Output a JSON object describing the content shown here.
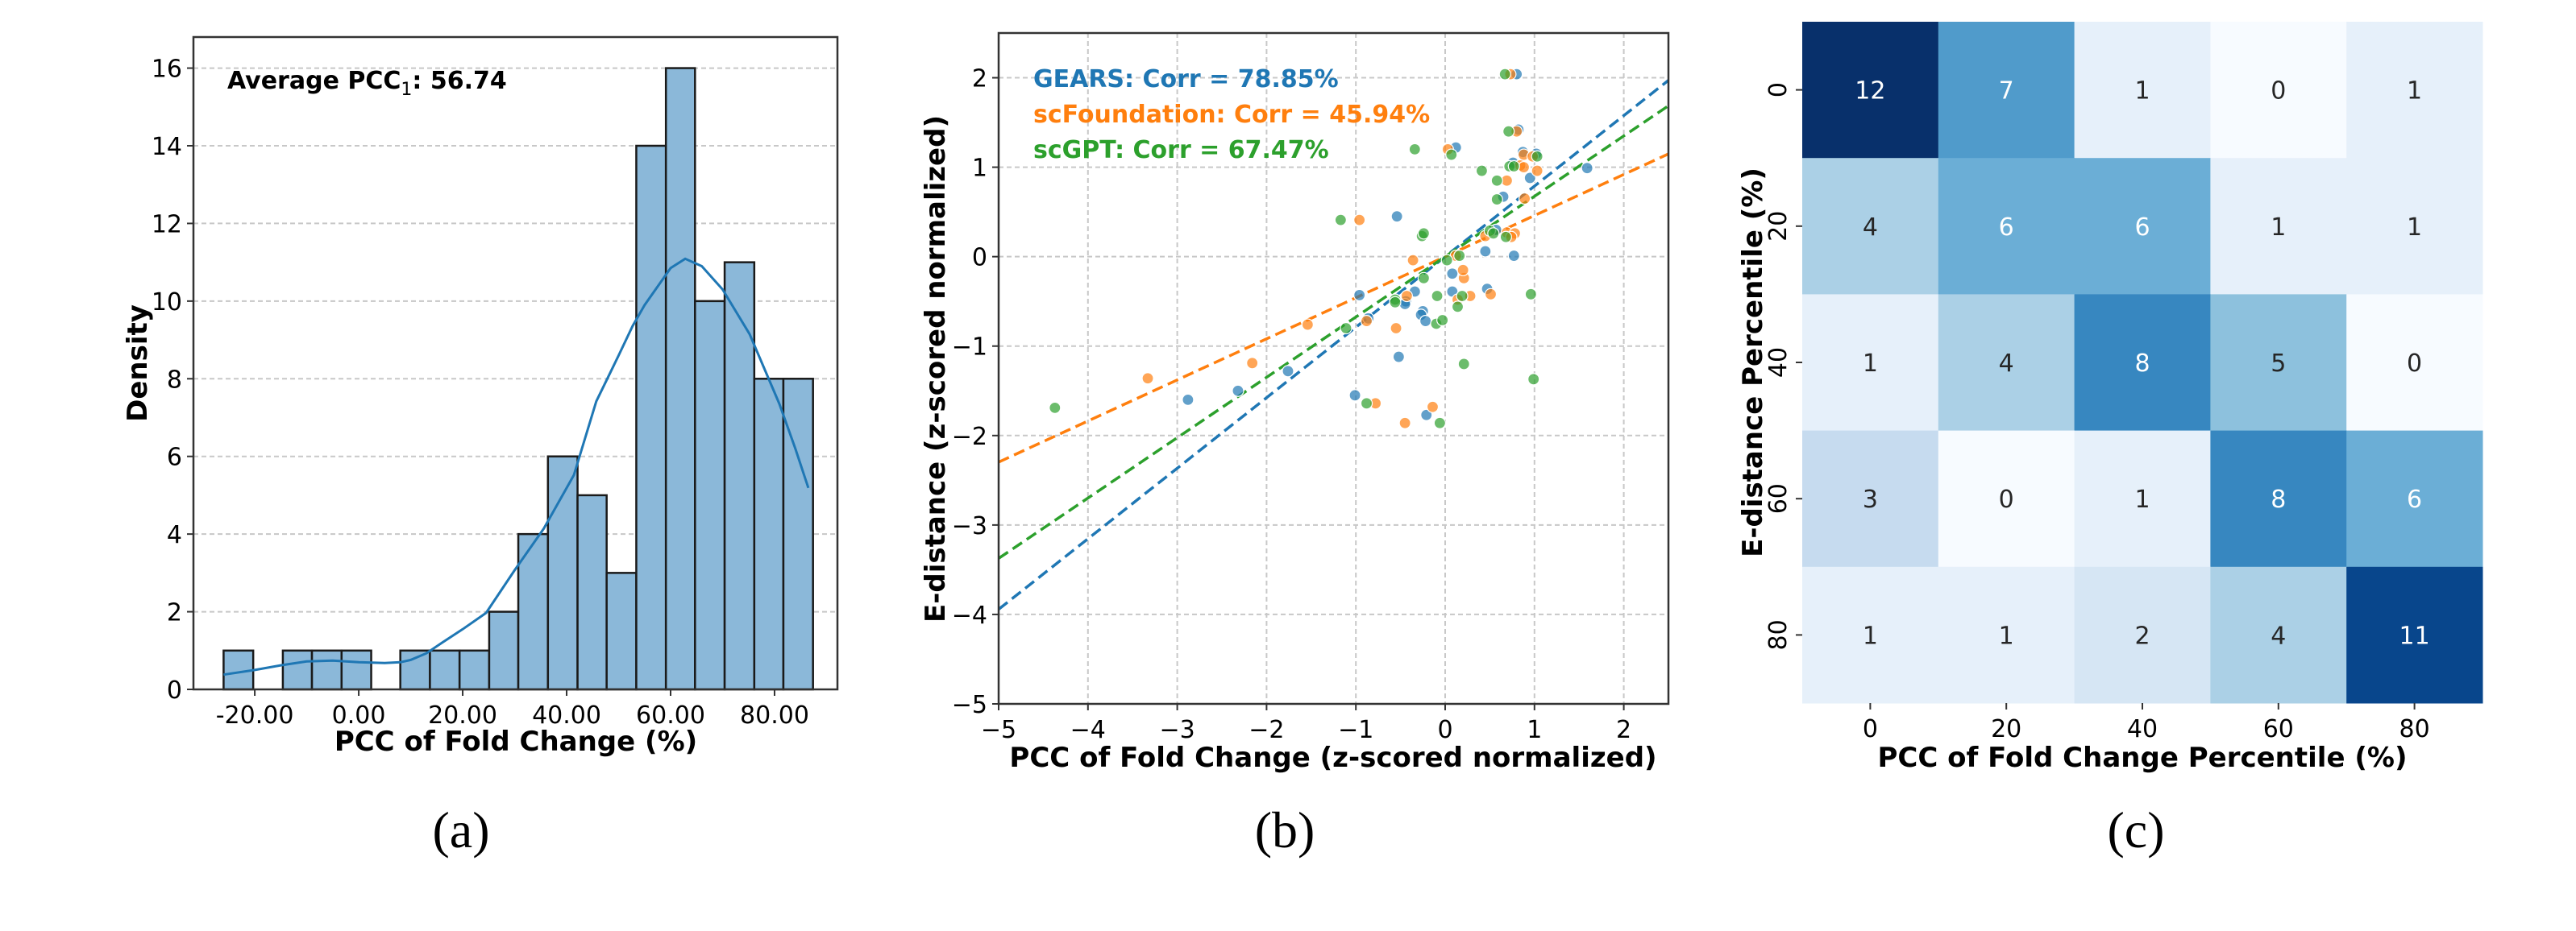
{
  "figure": {
    "captions": [
      "(a)",
      "(b)",
      "(c)"
    ]
  },
  "chart_data": [
    {
      "id": "a",
      "type": "bar",
      "subtype": "histogram-with-kde",
      "title": "",
      "annotation": {
        "prefix": "Average PCC",
        "subscript": "1",
        "suffix": ": 56.74"
      },
      "xlabel": "PCC of Fold Change (%)",
      "ylabel": "Density",
      "xlim": [
        -31.8,
        92.1
      ],
      "ylim": [
        0,
        16.8
      ],
      "xticks": [
        -20,
        0,
        20,
        40,
        60,
        80
      ],
      "xtick_labels": [
        "-20.00",
        "0.00",
        "20.00",
        "40.00",
        "60.00",
        "80.00"
      ],
      "yticks": [
        0,
        2,
        4,
        6,
        8,
        10,
        12,
        14,
        16
      ],
      "ytick_labels": [
        "0",
        "2",
        "4",
        "6",
        "8",
        "10",
        "12",
        "14",
        "16"
      ],
      "grid": "y-dashed",
      "bin_edges": [
        -26.0,
        -20.3,
        -14.6,
        -9.0,
        -3.3,
        2.4,
        8.0,
        13.7,
        19.4,
        25.1,
        30.7,
        36.4,
        42.1,
        47.7,
        53.4,
        59.1,
        64.7,
        70.4,
        76.1,
        81.7,
        87.4
      ],
      "counts": [
        1,
        0,
        1,
        1,
        1,
        0,
        1,
        1,
        1,
        2,
        4,
        6,
        5,
        3,
        14,
        16,
        10,
        11,
        8,
        8
      ],
      "kde": {
        "x": [
          -26,
          -20,
          -15,
          -10,
          -5,
          0,
          5,
          8,
          10,
          13,
          16,
          20,
          24.5,
          30,
          35.6,
          41.4,
          45.7,
          50,
          52.7,
          55,
          60,
          62.8,
          66,
          70,
          75.2,
          80.9,
          84,
          86.5
        ],
        "y": [
          0.38,
          0.5,
          0.62,
          0.72,
          0.74,
          0.7,
          0.68,
          0.7,
          0.76,
          0.93,
          1.2,
          1.55,
          1.97,
          3.07,
          4.14,
          5.52,
          7.42,
          8.6,
          9.36,
          9.9,
          10.85,
          11.09,
          10.9,
          10.3,
          9.15,
          7.36,
          6.2,
          5.19
        ]
      },
      "colors": {
        "bar": "#8bb8d9",
        "edge": "#1a1a1a",
        "kde": "#1f77b4"
      }
    },
    {
      "id": "b",
      "type": "scatter",
      "title": "",
      "xlabel": "PCC of Fold Change (z-scored normalized)",
      "ylabel": "E-distance (z-scored normalized)",
      "xlim": [
        -5,
        2.5
      ],
      "ylim": [
        -5,
        2.5
      ],
      "xticks": [
        -5,
        -4,
        -3,
        -2,
        -1,
        0,
        1,
        2
      ],
      "xtick_labels": [
        "−5",
        "−4",
        "−3",
        "−2",
        "−1",
        "0",
        "1",
        "2"
      ],
      "yticks": [
        -5,
        -4,
        -3,
        -2,
        -1,
        0,
        1,
        2
      ],
      "ytick_labels": [
        "−5",
        "−4",
        "−3",
        "−2",
        "−1",
        "0",
        "1",
        "2"
      ],
      "grid": "dashed",
      "legend_placement": "top-left",
      "series": [
        {
          "name": "GEARS",
          "label": "GEARS: Corr = 78.85%",
          "color": "#1f77b4",
          "fit": {
            "slope": 0.7885,
            "intercept": 0.0
          },
          "points": [
            [
              0.8,
              2.04
            ],
            [
              0.82,
              1.42
            ],
            [
              0.12,
              1.22
            ],
            [
              0.87,
              1.17
            ],
            [
              1.02,
              1.15
            ],
            [
              0.76,
              1.05
            ],
            [
              1.59,
              0.99
            ],
            [
              0.95,
              0.88
            ],
            [
              0.65,
              0.67
            ],
            [
              -0.54,
              0.45
            ],
            [
              0.57,
              0.3
            ],
            [
              0.45,
              0.06
            ],
            [
              0.77,
              0.01
            ],
            [
              0.08,
              -0.19
            ],
            [
              -0.34,
              -0.39
            ],
            [
              0.08,
              -0.39
            ],
            [
              -0.96,
              -0.43
            ],
            [
              0.47,
              -0.36
            ],
            [
              -0.44,
              -0.5
            ],
            [
              -0.25,
              -0.61
            ],
            [
              -0.27,
              -0.65
            ],
            [
              -0.22,
              -0.72
            ],
            [
              -0.45,
              -0.53
            ],
            [
              -0.86,
              -0.69
            ],
            [
              -0.52,
              -1.12
            ],
            [
              -1.76,
              -1.28
            ],
            [
              -2.32,
              -1.5
            ],
            [
              -2.88,
              -1.6
            ],
            [
              -1.01,
              -1.55
            ],
            [
              -0.21,
              -1.77
            ]
          ]
        },
        {
          "name": "scFoundation",
          "label": "scFoundation: Corr = 45.94%",
          "color": "#ff7f0e",
          "fit": {
            "slope": 0.4594,
            "intercept": 0.0
          },
          "points": [
            [
              0.73,
              2.04
            ],
            [
              0.8,
              1.4
            ],
            [
              0.03,
              1.2
            ],
            [
              0.88,
              1.14
            ],
            [
              0.98,
              1.12
            ],
            [
              0.84,
              1.02
            ],
            [
              0.88,
              1.0
            ],
            [
              1.03,
              0.96
            ],
            [
              0.69,
              0.85
            ],
            [
              0.89,
              0.65
            ],
            [
              -0.96,
              0.41
            ],
            [
              0.45,
              0.23
            ],
            [
              0.69,
              0.27
            ],
            [
              0.78,
              0.26
            ],
            [
              0.74,
              0.22
            ],
            [
              -0.36,
              -0.04
            ],
            [
              0.12,
              0.01
            ],
            [
              0.21,
              -0.24
            ],
            [
              0.2,
              -0.15
            ],
            [
              -0.43,
              -0.44
            ],
            [
              0.28,
              -0.44
            ],
            [
              0.51,
              -0.42
            ],
            [
              0.14,
              -0.48
            ],
            [
              -0.55,
              -0.8
            ],
            [
              -0.88,
              -0.72
            ],
            [
              -1.54,
              -0.76
            ],
            [
              -2.16,
              -1.19
            ],
            [
              -3.33,
              -1.36
            ],
            [
              -0.78,
              -1.64
            ],
            [
              -0.14,
              -1.68
            ],
            [
              -0.45,
              -1.86
            ]
          ]
        },
        {
          "name": "scGPT",
          "label": "scGPT: Corr = 67.47%",
          "color": "#2ca02c",
          "fit": {
            "slope": 0.6747,
            "intercept": 0.0
          },
          "points": [
            [
              0.67,
              2.04
            ],
            [
              0.71,
              1.4
            ],
            [
              -0.34,
              1.2
            ],
            [
              0.07,
              1.14
            ],
            [
              1.03,
              1.12
            ],
            [
              0.72,
              1.01
            ],
            [
              0.77,
              1.01
            ],
            [
              0.41,
              0.96
            ],
            [
              0.58,
              0.85
            ],
            [
              0.58,
              0.64
            ],
            [
              -1.17,
              0.41
            ],
            [
              -0.26,
              0.23
            ],
            [
              -0.24,
              0.26
            ],
            [
              0.5,
              0.29
            ],
            [
              0.54,
              0.26
            ],
            [
              0.68,
              0.22
            ],
            [
              0.02,
              -0.04
            ],
            [
              0.16,
              0.01
            ],
            [
              -0.24,
              -0.24
            ],
            [
              -0.09,
              -0.44
            ],
            [
              0.19,
              -0.44
            ],
            [
              0.96,
              -0.42
            ],
            [
              -0.56,
              -0.48
            ],
            [
              0.14,
              -0.56
            ],
            [
              -0.56,
              -0.51
            ],
            [
              -0.1,
              -0.75
            ],
            [
              -0.03,
              -0.71
            ],
            [
              -1.11,
              -0.8
            ],
            [
              0.21,
              -1.2
            ],
            [
              0.99,
              -1.37
            ],
            [
              -0.88,
              -1.64
            ],
            [
              -0.06,
              -1.86
            ],
            [
              -4.37,
              -1.69
            ]
          ]
        }
      ]
    },
    {
      "id": "c",
      "type": "heatmap",
      "title": "",
      "xlabel": "PCC of Fold Change Percentile (%)",
      "ylabel": "E-distance Percentile (%)",
      "x_categories": [
        "0",
        "20",
        "40",
        "60",
        "80"
      ],
      "y_categories": [
        "0",
        "20",
        "40",
        "60",
        "80"
      ],
      "values": [
        [
          12,
          7,
          1,
          0,
          1
        ],
        [
          4,
          6,
          6,
          1,
          1
        ],
        [
          1,
          4,
          8,
          5,
          0
        ],
        [
          3,
          0,
          1,
          8,
          6
        ],
        [
          1,
          1,
          2,
          4,
          11
        ]
      ],
      "vmin": 0,
      "vmax": 12,
      "colormap": "Blues",
      "annotated": true
    }
  ]
}
